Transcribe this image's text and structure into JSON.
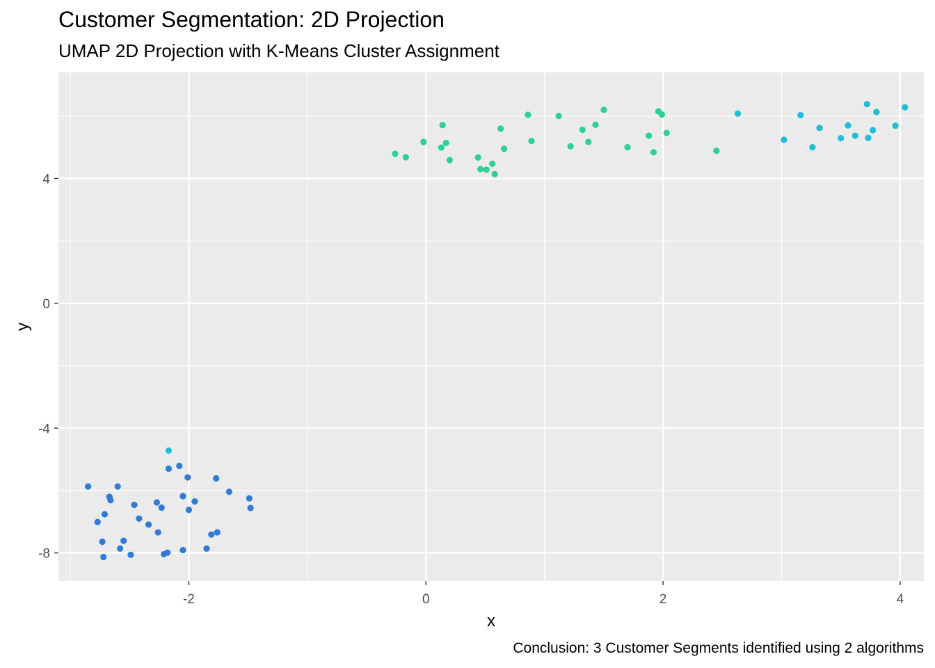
{
  "chart_data": {
    "type": "scatter",
    "title": "Customer Segmentation: 2D Projection",
    "subtitle": "UMAP 2D Projection with K-Means Cluster Assignment",
    "caption": "Conclusion: 3 Customer Segments identified using 2 algorithms",
    "xlabel": "x",
    "ylabel": "y",
    "xlim": [
      -3.1,
      4.2
    ],
    "ylim": [
      -8.9,
      7.4
    ],
    "x_ticks": [
      -2,
      0,
      2,
      4
    ],
    "x_tick_labels": [
      "-2",
      "0",
      "2",
      "4"
    ],
    "y_ticks": [
      -8,
      -4,
      0,
      4
    ],
    "y_tick_labels": [
      "-8",
      "-4",
      "0",
      "4"
    ],
    "grid": true,
    "legend": "none",
    "panel_color": "#ebebeb",
    "grid_color": "#ffffff",
    "series": [
      {
        "color": "#2f7bd6",
        "points": [
          [
            -2.85,
            -5.87
          ],
          [
            -2.77,
            -7.01
          ],
          [
            -2.73,
            -7.64
          ],
          [
            -2.72,
            -8.13
          ],
          [
            -2.71,
            -6.76
          ],
          [
            -2.67,
            -6.2
          ],
          [
            -2.66,
            -6.31
          ],
          [
            -2.6,
            -5.87
          ],
          [
            -2.58,
            -7.86
          ],
          [
            -2.55,
            -7.61
          ],
          [
            -2.49,
            -8.06
          ],
          [
            -2.46,
            -6.46
          ],
          [
            -2.42,
            -6.9
          ],
          [
            -2.34,
            -7.09
          ],
          [
            -2.27,
            -6.38
          ],
          [
            -2.26,
            -7.34
          ],
          [
            -2.23,
            -6.55
          ],
          [
            -2.21,
            -8.04
          ],
          [
            -2.18,
            -7.99
          ],
          [
            -2.17,
            -5.3
          ],
          [
            -2.08,
            -5.21
          ],
          [
            -2.05,
            -6.18
          ],
          [
            -2.05,
            -7.91
          ],
          [
            -2.01,
            -5.58
          ],
          [
            -2.0,
            -6.62
          ],
          [
            -1.95,
            -6.35
          ],
          [
            -1.85,
            -7.86
          ],
          [
            -1.81,
            -7.41
          ],
          [
            -1.77,
            -5.61
          ],
          [
            -1.76,
            -7.34
          ],
          [
            -1.66,
            -6.04
          ],
          [
            -1.49,
            -6.25
          ],
          [
            -1.48,
            -6.56
          ]
        ]
      },
      {
        "color": "#2dd192",
        "points": [
          [
            -0.26,
            4.79
          ],
          [
            -0.17,
            4.68
          ],
          [
            -0.02,
            5.17
          ],
          [
            0.13,
            4.99
          ],
          [
            0.14,
            5.71
          ],
          [
            0.17,
            5.14
          ],
          [
            0.2,
            4.59
          ],
          [
            0.44,
            4.67
          ],
          [
            0.46,
            4.3
          ],
          [
            0.51,
            4.28
          ],
          [
            0.56,
            4.47
          ],
          [
            0.58,
            4.14
          ],
          [
            0.63,
            5.6
          ],
          [
            0.66,
            4.95
          ],
          [
            0.86,
            6.04
          ],
          [
            0.89,
            5.2
          ],
          [
            1.12,
            6.0
          ],
          [
            1.22,
            5.03
          ],
          [
            1.32,
            5.56
          ],
          [
            1.37,
            5.17
          ],
          [
            1.43,
            5.72
          ],
          [
            1.5,
            6.2
          ],
          [
            1.7,
            5.0
          ],
          [
            1.88,
            5.37
          ],
          [
            1.92,
            4.84
          ],
          [
            1.96,
            6.15
          ],
          [
            1.99,
            6.05
          ],
          [
            2.03,
            5.46
          ],
          [
            2.45,
            4.89
          ]
        ]
      },
      {
        "color": "#22bcd6",
        "points": [
          [
            -2.17,
            -4.72
          ],
          [
            2.63,
            6.08
          ],
          [
            3.02,
            5.24
          ],
          [
            3.16,
            6.03
          ],
          [
            3.26,
            5.0
          ],
          [
            3.32,
            5.62
          ],
          [
            3.5,
            5.29
          ],
          [
            3.56,
            5.7
          ],
          [
            3.62,
            5.37
          ],
          [
            3.72,
            6.38
          ],
          [
            3.73,
            5.3
          ],
          [
            3.77,
            5.55
          ],
          [
            3.8,
            6.13
          ],
          [
            3.96,
            5.69
          ],
          [
            4.04,
            6.28
          ]
        ]
      }
    ]
  }
}
